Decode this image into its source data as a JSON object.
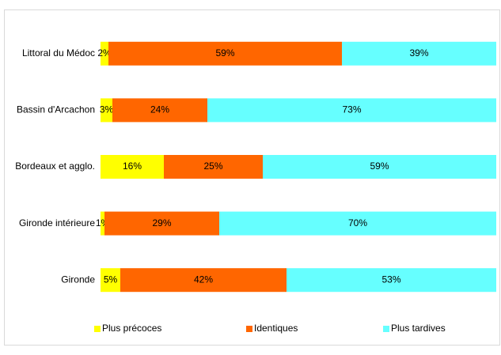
{
  "chart_data": {
    "type": "bar",
    "orientation": "horizontal",
    "stacked": true,
    "categories": [
      "Littoral du Médoc",
      "Bassin d'Arcachon",
      "Bordeaux et agglo.",
      "Gironde intérieure",
      "Gironde"
    ],
    "xlim": [
      0,
      100
    ],
    "legend": "bottom",
    "series": [
      {
        "name": "Plus précoces",
        "color": "#ffff00",
        "values": [
          2,
          3,
          16,
          1,
          5
        ],
        "value_labels": [
          "2%",
          "3%",
          "16%",
          "1%",
          "5%"
        ]
      },
      {
        "name": "Identiques",
        "color": "#ff6600",
        "values": [
          59,
          24,
          25,
          29,
          42
        ],
        "value_labels": [
          "59%",
          "24%",
          "25%",
          "29%",
          "42%"
        ]
      },
      {
        "name": "Plus tardives",
        "color": "#66ffff",
        "values": [
          39,
          73,
          59,
          70,
          53
        ],
        "value_labels": [
          "39%",
          "73%",
          "59%",
          "70%",
          "53%"
        ]
      }
    ]
  }
}
